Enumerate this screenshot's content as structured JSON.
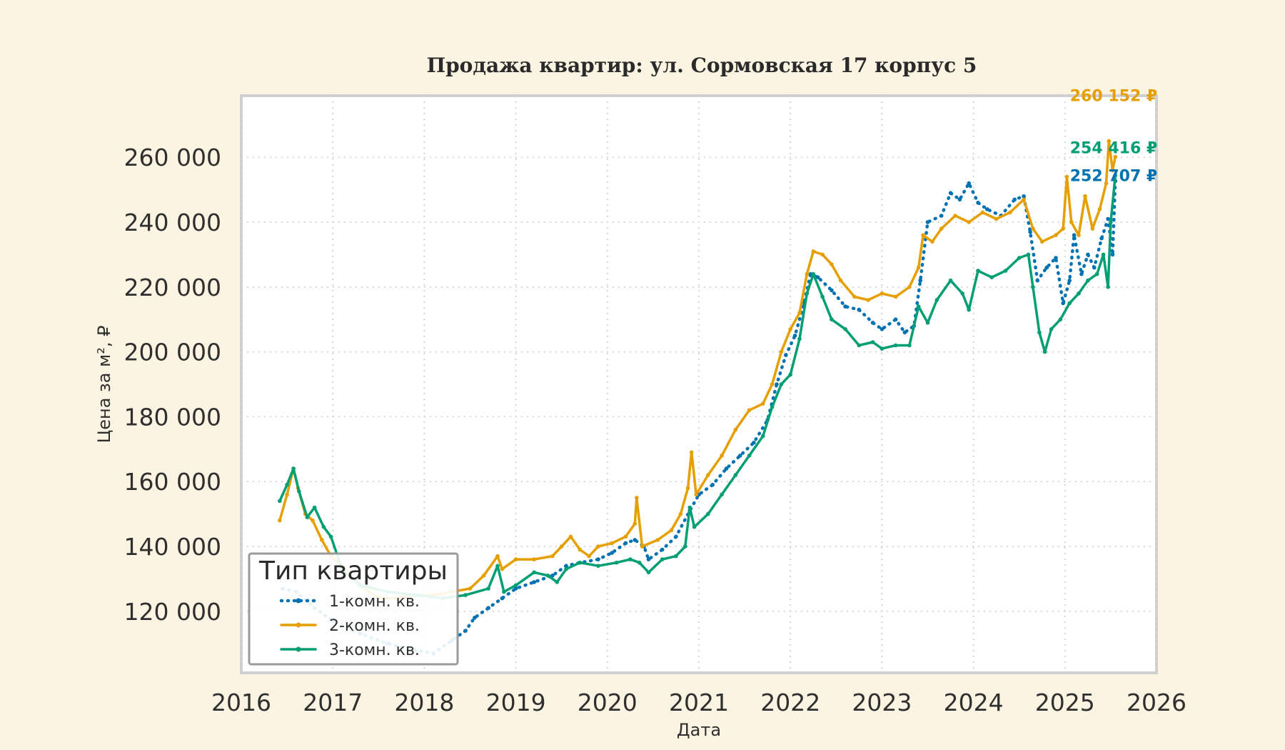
{
  "chart_data": {
    "type": "line",
    "title": "Продажа квартир: ул. Сормовская 17 корпус 5",
    "xlabel": "Дата",
    "ylabel": "Цена за м², ₽",
    "xlim": [
      2016,
      2026
    ],
    "ylim": [
      101000,
      279000
    ],
    "x_ticks": [
      "2016",
      "2017",
      "2018",
      "2019",
      "2020",
      "2021",
      "2022",
      "2023",
      "2024",
      "2025",
      "2026"
    ],
    "y_ticks": [
      120000,
      140000,
      160000,
      180000,
      200000,
      220000,
      240000,
      260000
    ],
    "y_tick_labels": [
      "120 000",
      "140 000",
      "160 000",
      "180 000",
      "200 000",
      "220 000",
      "240 000",
      "260 000"
    ],
    "grid": true,
    "legend_title": "Тип квартиры",
    "legend_position": "lower-left",
    "series": [
      {
        "name": "1-комн. кв.",
        "color": "#0072b2",
        "style": "dotted",
        "end_label": "252 707 ₽",
        "points": [
          [
            2016.45,
            127000
          ],
          [
            2016.6,
            126000
          ],
          [
            2016.8,
            121000
          ],
          [
            2017.0,
            117000
          ],
          [
            2017.3,
            113000
          ],
          [
            2017.6,
            110000
          ],
          [
            2017.9,
            108000
          ],
          [
            2018.1,
            107000
          ],
          [
            2018.3,
            111000
          ],
          [
            2018.45,
            114000
          ],
          [
            2018.55,
            118000
          ],
          [
            2018.7,
            121000
          ],
          [
            2018.85,
            124000
          ],
          [
            2019.0,
            127000
          ],
          [
            2019.2,
            129000
          ],
          [
            2019.4,
            131000
          ],
          [
            2019.55,
            134000
          ],
          [
            2019.7,
            135000
          ],
          [
            2019.9,
            136000
          ],
          [
            2020.05,
            138000
          ],
          [
            2020.2,
            141000
          ],
          [
            2020.3,
            142000
          ],
          [
            2020.4,
            140000
          ],
          [
            2020.45,
            136000
          ],
          [
            2020.6,
            139000
          ],
          [
            2020.75,
            143000
          ],
          [
            2020.9,
            151000
          ],
          [
            2021.0,
            156000
          ],
          [
            2021.15,
            159000
          ],
          [
            2021.3,
            164000
          ],
          [
            2021.45,
            168000
          ],
          [
            2021.6,
            172000
          ],
          [
            2021.75,
            179000
          ],
          [
            2021.85,
            190000
          ],
          [
            2021.95,
            199000
          ],
          [
            2022.05,
            205000
          ],
          [
            2022.15,
            215000
          ],
          [
            2022.22,
            224000
          ],
          [
            2022.3,
            223000
          ],
          [
            2022.45,
            219000
          ],
          [
            2022.6,
            214000
          ],
          [
            2022.75,
            213000
          ],
          [
            2022.9,
            209000
          ],
          [
            2023.0,
            207000
          ],
          [
            2023.15,
            210000
          ],
          [
            2023.25,
            206000
          ],
          [
            2023.35,
            208000
          ],
          [
            2023.42,
            222000
          ],
          [
            2023.5,
            240000
          ],
          [
            2023.65,
            242000
          ],
          [
            2023.75,
            249000
          ],
          [
            2023.85,
            247000
          ],
          [
            2023.95,
            252000
          ],
          [
            2024.05,
            246000
          ],
          [
            2024.15,
            244000
          ],
          [
            2024.3,
            242000
          ],
          [
            2024.45,
            247000
          ],
          [
            2024.55,
            248000
          ],
          [
            2024.62,
            237000
          ],
          [
            2024.7,
            222000
          ],
          [
            2024.8,
            226000
          ],
          [
            2024.9,
            229000
          ],
          [
            2024.98,
            215000
          ],
          [
            2025.05,
            222000
          ],
          [
            2025.1,
            236000
          ],
          [
            2025.18,
            224000
          ],
          [
            2025.25,
            230000
          ],
          [
            2025.32,
            226000
          ],
          [
            2025.4,
            235000
          ],
          [
            2025.47,
            241000
          ],
          [
            2025.52,
            230000
          ],
          [
            2025.55,
            252707
          ]
        ]
      },
      {
        "name": "2-комн. кв.",
        "color": "#e69f00",
        "style": "solid",
        "end_label": "260 152 ₽",
        "points": [
          [
            2016.42,
            148000
          ],
          [
            2016.5,
            156000
          ],
          [
            2016.57,
            164000
          ],
          [
            2016.62,
            158000
          ],
          [
            2016.7,
            150000
          ],
          [
            2016.78,
            148000
          ],
          [
            2016.88,
            142000
          ],
          [
            2016.98,
            137000
          ],
          [
            2017.1,
            134000
          ],
          [
            2017.3,
            128000
          ],
          [
            2017.5,
            124000
          ],
          [
            2017.7,
            124000
          ],
          [
            2017.9,
            125000
          ],
          [
            2018.1,
            125000
          ],
          [
            2018.3,
            126000
          ],
          [
            2018.5,
            127000
          ],
          [
            2018.65,
            131000
          ],
          [
            2018.8,
            137000
          ],
          [
            2018.85,
            133000
          ],
          [
            2019.0,
            136000
          ],
          [
            2019.2,
            136000
          ],
          [
            2019.4,
            137000
          ],
          [
            2019.5,
            140000
          ],
          [
            2019.6,
            143000
          ],
          [
            2019.7,
            139000
          ],
          [
            2019.8,
            137000
          ],
          [
            2019.9,
            140000
          ],
          [
            2020.05,
            141000
          ],
          [
            2020.2,
            143000
          ],
          [
            2020.3,
            147000
          ],
          [
            2020.32,
            155000
          ],
          [
            2020.38,
            140000
          ],
          [
            2020.55,
            142000
          ],
          [
            2020.7,
            145000
          ],
          [
            2020.8,
            150000
          ],
          [
            2020.88,
            158000
          ],
          [
            2020.92,
            169000
          ],
          [
            2020.97,
            156000
          ],
          [
            2021.1,
            162000
          ],
          [
            2021.25,
            168000
          ],
          [
            2021.4,
            176000
          ],
          [
            2021.55,
            182000
          ],
          [
            2021.7,
            184000
          ],
          [
            2021.8,
            190000
          ],
          [
            2021.9,
            200000
          ],
          [
            2022.0,
            207000
          ],
          [
            2022.1,
            212000
          ],
          [
            2022.18,
            224000
          ],
          [
            2022.25,
            231000
          ],
          [
            2022.35,
            230000
          ],
          [
            2022.45,
            227000
          ],
          [
            2022.55,
            222000
          ],
          [
            2022.7,
            217000
          ],
          [
            2022.85,
            216000
          ],
          [
            2023.0,
            218000
          ],
          [
            2023.15,
            217000
          ],
          [
            2023.3,
            220000
          ],
          [
            2023.4,
            226000
          ],
          [
            2023.45,
            236000
          ],
          [
            2023.55,
            234000
          ],
          [
            2023.65,
            238000
          ],
          [
            2023.8,
            242000
          ],
          [
            2023.95,
            240000
          ],
          [
            2024.1,
            243000
          ],
          [
            2024.25,
            241000
          ],
          [
            2024.4,
            243000
          ],
          [
            2024.55,
            247000
          ],
          [
            2024.65,
            238000
          ],
          [
            2024.75,
            234000
          ],
          [
            2024.9,
            236000
          ],
          [
            2024.98,
            238000
          ],
          [
            2025.02,
            254000
          ],
          [
            2025.07,
            240000
          ],
          [
            2025.15,
            236000
          ],
          [
            2025.22,
            248000
          ],
          [
            2025.3,
            238000
          ],
          [
            2025.38,
            244000
          ],
          [
            2025.45,
            252000
          ],
          [
            2025.48,
            265000
          ],
          [
            2025.52,
            256000
          ],
          [
            2025.55,
            260152
          ]
        ]
      },
      {
        "name": "3-комн. кв.",
        "color": "#009e73",
        "style": "solid",
        "end_label": "254 416 ₽",
        "points": [
          [
            2016.42,
            154000
          ],
          [
            2016.5,
            159000
          ],
          [
            2016.57,
            164000
          ],
          [
            2016.63,
            157000
          ],
          [
            2016.72,
            149000
          ],
          [
            2016.8,
            152000
          ],
          [
            2016.9,
            146000
          ],
          [
            2016.98,
            143000
          ],
          [
            2017.1,
            133000
          ],
          [
            2017.3,
            128000
          ],
          [
            2017.6,
            126000
          ],
          [
            2017.9,
            125000
          ],
          [
            2018.2,
            124000
          ],
          [
            2018.45,
            125000
          ],
          [
            2018.7,
            127000
          ],
          [
            2018.8,
            134000
          ],
          [
            2018.87,
            126000
          ],
          [
            2019.0,
            128000
          ],
          [
            2019.2,
            132000
          ],
          [
            2019.35,
            131000
          ],
          [
            2019.45,
            129000
          ],
          [
            2019.55,
            133000
          ],
          [
            2019.7,
            135000
          ],
          [
            2019.9,
            134000
          ],
          [
            2020.1,
            135000
          ],
          [
            2020.25,
            136000
          ],
          [
            2020.35,
            135000
          ],
          [
            2020.45,
            132000
          ],
          [
            2020.6,
            136000
          ],
          [
            2020.75,
            137000
          ],
          [
            2020.85,
            140000
          ],
          [
            2020.9,
            152000
          ],
          [
            2020.95,
            146000
          ],
          [
            2021.1,
            150000
          ],
          [
            2021.25,
            156000
          ],
          [
            2021.4,
            162000
          ],
          [
            2021.55,
            168000
          ],
          [
            2021.7,
            174000
          ],
          [
            2021.8,
            183000
          ],
          [
            2021.9,
            190000
          ],
          [
            2022.0,
            193000
          ],
          [
            2022.1,
            204000
          ],
          [
            2022.18,
            218000
          ],
          [
            2022.25,
            224000
          ],
          [
            2022.35,
            217000
          ],
          [
            2022.45,
            210000
          ],
          [
            2022.6,
            207000
          ],
          [
            2022.75,
            202000
          ],
          [
            2022.9,
            203000
          ],
          [
            2023.0,
            201000
          ],
          [
            2023.15,
            202000
          ],
          [
            2023.3,
            202000
          ],
          [
            2023.4,
            214000
          ],
          [
            2023.5,
            209000
          ],
          [
            2023.6,
            216000
          ],
          [
            2023.75,
            222000
          ],
          [
            2023.88,
            218000
          ],
          [
            2023.95,
            213000
          ],
          [
            2024.05,
            225000
          ],
          [
            2024.2,
            223000
          ],
          [
            2024.35,
            225000
          ],
          [
            2024.5,
            229000
          ],
          [
            2024.6,
            230000
          ],
          [
            2024.65,
            220000
          ],
          [
            2024.72,
            206000
          ],
          [
            2024.78,
            200000
          ],
          [
            2024.85,
            207000
          ],
          [
            2024.95,
            210000
          ],
          [
            2025.05,
            215000
          ],
          [
            2025.15,
            218000
          ],
          [
            2025.25,
            222000
          ],
          [
            2025.35,
            224000
          ],
          [
            2025.42,
            230000
          ],
          [
            2025.47,
            220000
          ],
          [
            2025.5,
            240000
          ],
          [
            2025.55,
            254416
          ]
        ]
      }
    ]
  }
}
